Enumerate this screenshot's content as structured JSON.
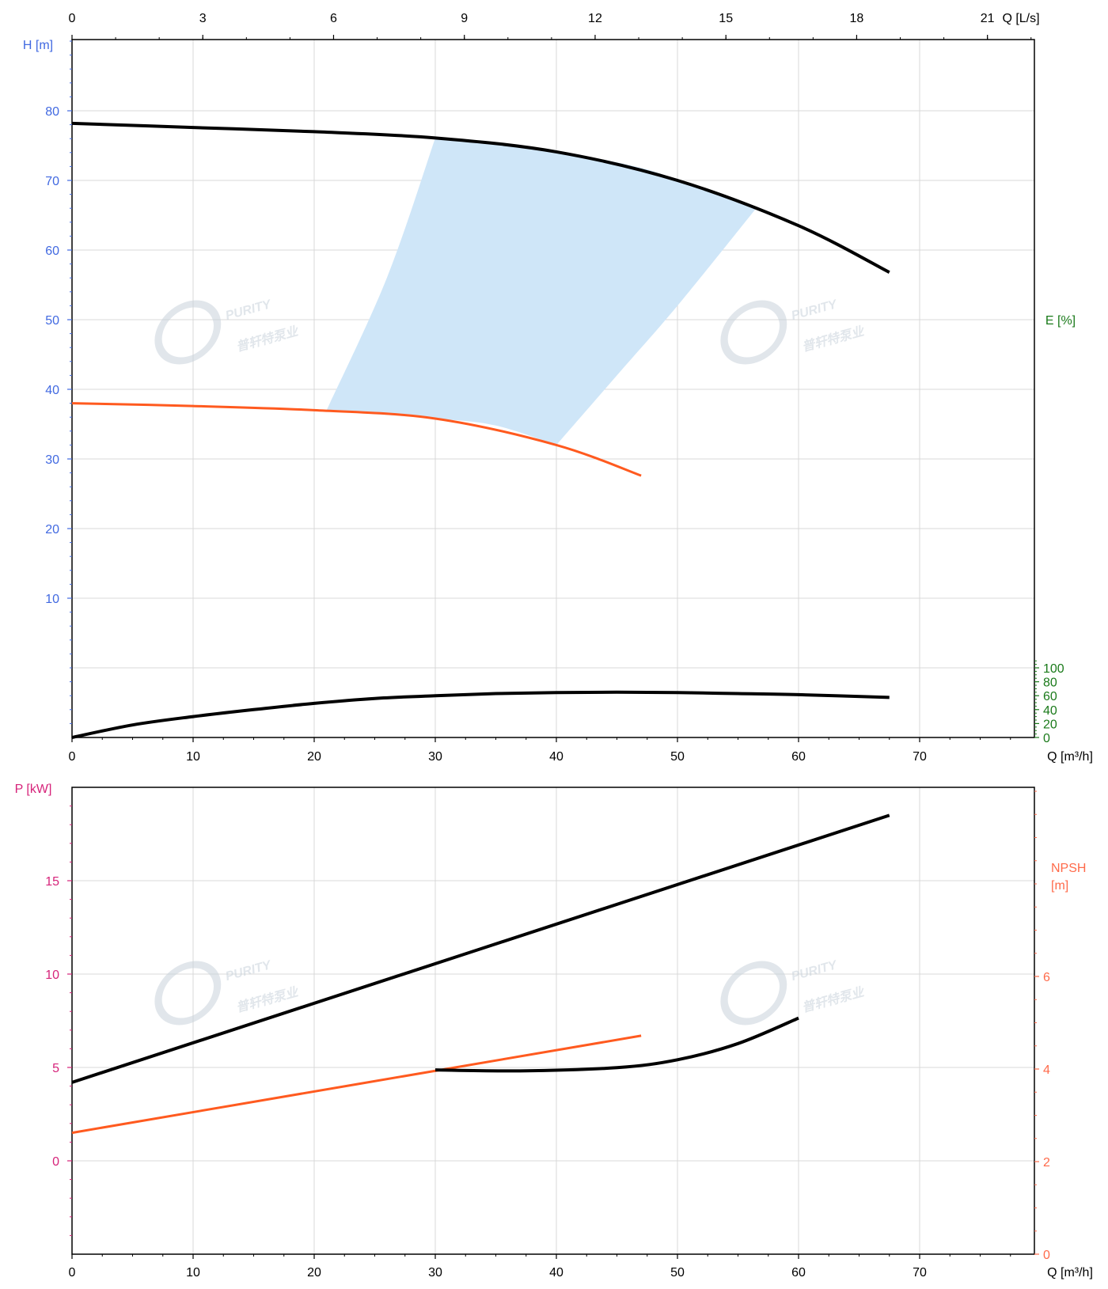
{
  "colors": {
    "h_axis": "#4169e1",
    "e_axis": "#1a7a1a",
    "p_axis": "#d6237a",
    "npsh_axis": "#ff6a4a",
    "black_curve": "#000000",
    "orange_curve": "#ff5a1f",
    "region_fill": "#cfe6f8",
    "grid": "#d9d9d9",
    "watermark": "#c9d3dc"
  },
  "watermark": {
    "brand": "PURITY",
    "sub": "普轩特泵业"
  },
  "chart_data": [
    {
      "type": "line",
      "x_axis": {
        "label": "Q [m³/h]",
        "range": [
          0,
          80
        ],
        "ticks": [
          0,
          10,
          20,
          30,
          40,
          50,
          60,
          70
        ]
      },
      "top_axis": {
        "label": "Q [L/s]",
        "ticks": [
          0,
          3,
          6,
          9,
          12,
          15,
          18,
          21
        ]
      },
      "y_left": {
        "label": "H [m]",
        "range": [
          -10,
          90
        ],
        "ticks": [
          10,
          20,
          30,
          40,
          50,
          60,
          70,
          80
        ]
      },
      "y_right": {
        "label": "E [%]",
        "range": [
          0,
          140
        ],
        "ticks": [
          0,
          20,
          40,
          60,
          80,
          100
        ]
      },
      "grid": true,
      "region": {
        "name": "operating-range",
        "top_edge": [
          [
            30,
            76.1
          ],
          [
            40,
            74.1
          ],
          [
            47,
            71.8
          ],
          [
            51,
            69.3
          ],
          [
            56.5,
            66.0
          ]
        ],
        "right_edge": [
          [
            56.5,
            66.0
          ],
          [
            50,
            52.0
          ],
          [
            45,
            42.0
          ],
          [
            40,
            32.0
          ]
        ],
        "bottom_edge": [
          [
            40,
            32.0
          ],
          [
            35,
            34.8
          ],
          [
            30,
            35.8
          ],
          [
            21,
            36.9
          ]
        ],
        "left_edge": [
          [
            21,
            36.9
          ],
          [
            26,
            56.0
          ],
          [
            30,
            76.1
          ]
        ]
      },
      "series": [
        {
          "axis": "left",
          "color": "#000000",
          "x": [
            0,
            10,
            20,
            30,
            40,
            50,
            60,
            67.5
          ],
          "y": [
            78.2,
            77.6,
            77.0,
            76.1,
            74.1,
            70.0,
            63.5,
            56.8
          ]
        },
        {
          "axis": "left",
          "color": "#ff5a1f",
          "x": [
            0,
            10,
            20,
            30,
            40,
            47
          ],
          "y": [
            38.0,
            37.6,
            37.0,
            35.8,
            32.0,
            27.6
          ]
        },
        {
          "axis": "right",
          "color": "#000000",
          "x": [
            0,
            5,
            10,
            15,
            20,
            25,
            30,
            35,
            40,
            45,
            50,
            55,
            60,
            67.5
          ],
          "y": [
            0,
            18,
            30,
            40,
            49,
            56,
            60,
            63,
            64.5,
            65,
            64.5,
            63,
            61.5,
            57.5
          ]
        }
      ]
    },
    {
      "type": "line",
      "x_axis": {
        "label": "Q [m³/h]",
        "range": [
          0,
          80
        ],
        "ticks": [
          0,
          10,
          20,
          30,
          40,
          50,
          60,
          70
        ]
      },
      "y_left": {
        "label": "P [kW]",
        "range": [
          -5,
          20
        ],
        "ticks": [
          0,
          5,
          10,
          15
        ]
      },
      "y_right": {
        "label": "NPSH\n[m]",
        "range": [
          0,
          10
        ],
        "ticks": [
          0,
          2,
          4,
          6
        ]
      },
      "grid": true,
      "series": [
        {
          "axis": "left",
          "color": "#000000",
          "x": [
            0,
            67.5
          ],
          "y": [
            4.2,
            18.5
          ]
        },
        {
          "axis": "left",
          "color": "#ff5a1f",
          "x": [
            0,
            47
          ],
          "y": [
            1.5,
            6.7
          ]
        },
        {
          "axis": "right",
          "color": "#000000",
          "x": [
            30,
            37,
            45,
            50,
            55,
            60
          ],
          "y": [
            3.98,
            3.96,
            4.03,
            4.2,
            4.55,
            5.1
          ]
        }
      ]
    }
  ]
}
